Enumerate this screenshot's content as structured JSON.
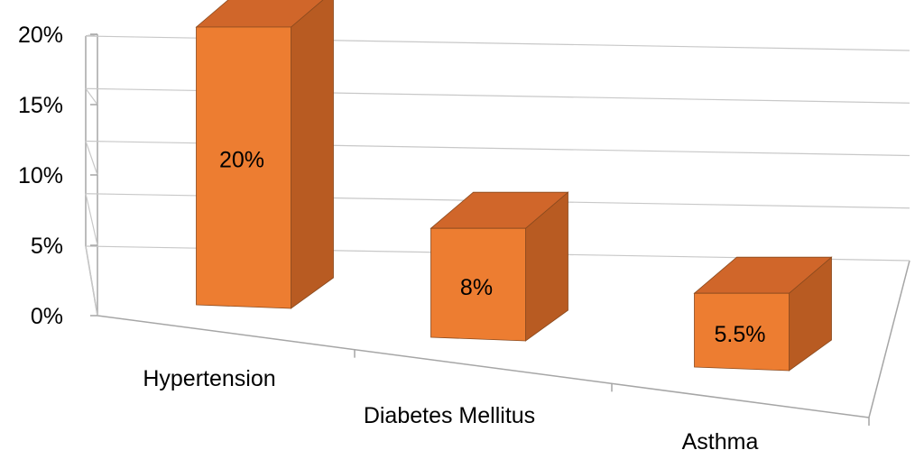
{
  "chart_data": {
    "type": "bar",
    "style": "3d-column",
    "categories": [
      "Hypertension",
      "Diabetes Mellitus",
      "Asthma"
    ],
    "values": [
      20,
      8,
      5.5
    ],
    "data_labels": [
      "20%",
      "8%",
      "5.5%"
    ],
    "y_ticks": [
      "0%",
      "5%",
      "10%",
      "15%",
      "20%"
    ],
    "ylim": [
      0,
      20
    ],
    "grid": true,
    "legend": "none",
    "colors": {
      "bar_front": "#ED7D31",
      "bar_top": "#D0662A",
      "bar_side": "#B85B22",
      "bar_edge": "#8A4A1E",
      "grid": "#C8C8C8",
      "axis": "#A6A6A6"
    }
  }
}
